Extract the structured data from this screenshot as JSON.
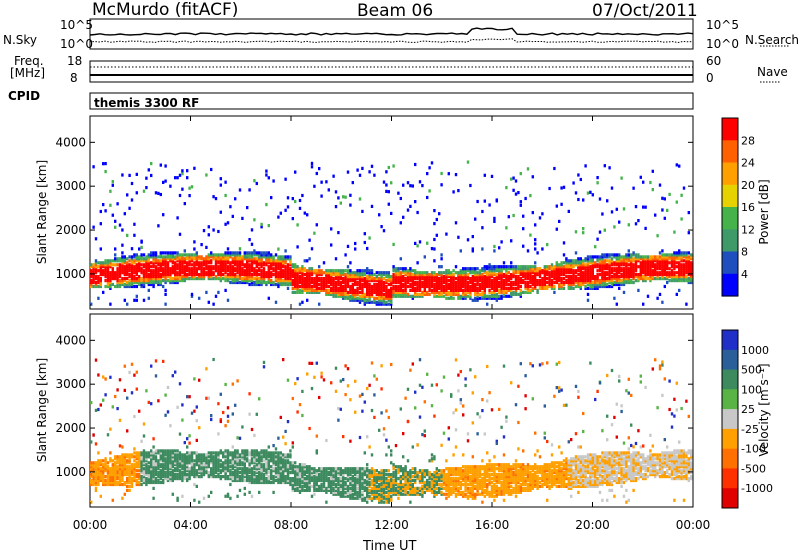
{
  "header": {
    "station": "McMurdo (fitACF)",
    "beam": "Beam 06",
    "date": "07/Oct/2011"
  },
  "top_panels": {
    "nsky_label": "N.Sky",
    "nsearch_label": "N.Search",
    "freq_label_line1": "Freq.",
    "freq_label_line2": "[MHz]",
    "nave_label": "Nave",
    "cpid_label": "CPID",
    "cpid_value": "themis 3300 RF",
    "noise_left_ticks": [
      "10^5",
      "10^0"
    ],
    "noise_right_ticks": [
      "10^5",
      "10^0"
    ],
    "freq_ticks": [
      "18",
      "8"
    ],
    "nave_ticks": [
      "60",
      "0"
    ]
  },
  "colors": {
    "power_scale": [
      "#0000ff",
      "#1f4fbf",
      "#3f9a6a",
      "#45b34a",
      "#e6d200",
      "#ffa000",
      "#ff6000",
      "#ff0000"
    ],
    "velocity_scale": [
      "#1f2fc8",
      "#2a5f9a",
      "#3d8a5f",
      "#5ab345",
      "#c8c8c8",
      "#ffa000",
      "#ff7000",
      "#ff3000",
      "#e00000"
    ]
  },
  "chart_data": [
    {
      "type": "heatmap",
      "title": "Power",
      "xlabel": "Time UT",
      "ylabel": "Slant Range [km]",
      "x_ticks": [
        "00:00",
        "04:00",
        "08:00",
        "12:00",
        "16:00",
        "20:00",
        "00:00"
      ],
      "y_ticks": [
        "1000",
        "2000",
        "3000",
        "4000"
      ],
      "ylim": [
        200,
        4600
      ],
      "colorbar_label": "Power [dB]",
      "colorbar_ticks": [
        "4",
        "8",
        "12",
        "16",
        "20",
        "24",
        "28"
      ],
      "colorbar_range": [
        0,
        32
      ]
    },
    {
      "type": "heatmap",
      "title": "Velocity",
      "xlabel": "Time UT",
      "ylabel": "Slant Range [km]",
      "x_ticks": [
        "00:00",
        "04:00",
        "08:00",
        "12:00",
        "16:00",
        "20:00",
        "00:00"
      ],
      "y_ticks": [
        "1000",
        "2000",
        "3000",
        "4000"
      ],
      "ylim": [
        200,
        4600
      ],
      "colorbar_label": "Velocity [m s⁻¹]",
      "colorbar_ticks": [
        "1000",
        "500",
        "100",
        "25",
        "-25",
        "-100",
        "-500",
        "-1000"
      ]
    }
  ]
}
